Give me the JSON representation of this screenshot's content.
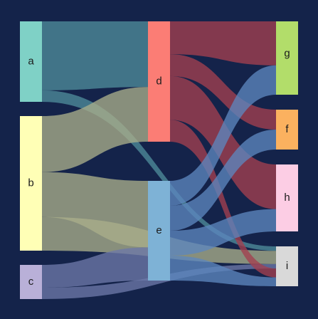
{
  "diagram": {
    "type": "sankey",
    "background": "#14234a",
    "nodes": [
      {
        "id": "a",
        "label": "a",
        "color": "#7fd1c6"
      },
      {
        "id": "b",
        "label": "b",
        "color": "#ffffb6"
      },
      {
        "id": "c",
        "label": "c",
        "color": "#b9b0d8"
      },
      {
        "id": "d",
        "label": "d",
        "color": "#fb7d75"
      },
      {
        "id": "e",
        "label": "e",
        "color": "#7eb2d6"
      },
      {
        "id": "g",
        "label": "g",
        "color": "#b2dd6a"
      },
      {
        "id": "f",
        "label": "f",
        "color": "#fbb15f"
      },
      {
        "id": "h",
        "label": "h",
        "color": "#fccde4"
      },
      {
        "id": "i",
        "label": "i",
        "color": "#d9d9d9"
      }
    ],
    "links": [
      {
        "source": "a",
        "target": "d",
        "value": 6,
        "color": "#4e8c9a"
      },
      {
        "source": "a",
        "target": "i",
        "value": 1,
        "color": "#4e8c9a"
      },
      {
        "source": "b",
        "target": "d",
        "value": 5,
        "color": "#a9ae8a"
      },
      {
        "source": "b",
        "target": "e",
        "value": 4,
        "color": "#a9ae8a"
      },
      {
        "source": "b",
        "target": "i",
        "value": 3,
        "color": "#a9ae8a"
      },
      {
        "source": "c",
        "target": "e",
        "value": 2,
        "color": "#6d78a8"
      },
      {
        "source": "c",
        "target": "i",
        "value": 1,
        "color": "#6d78a8"
      },
      {
        "source": "d",
        "target": "g",
        "value": 3,
        "color": "#a3404f"
      },
      {
        "source": "d",
        "target": "f",
        "value": 2,
        "color": "#a3404f"
      },
      {
        "source": "d",
        "target": "h",
        "value": 4,
        "color": "#a3404f"
      },
      {
        "source": "d",
        "target": "i",
        "value": 2,
        "color": "#a3404f"
      },
      {
        "source": "e",
        "target": "g",
        "value": 2,
        "color": "#5c86be"
      },
      {
        "source": "e",
        "target": "f",
        "value": 2,
        "color": "#5c86be"
      },
      {
        "source": "e",
        "target": "h",
        "value": 2,
        "color": "#5c86be"
      },
      {
        "source": "e",
        "target": "i",
        "value": 2,
        "color": "#5c86be"
      }
    ]
  }
}
